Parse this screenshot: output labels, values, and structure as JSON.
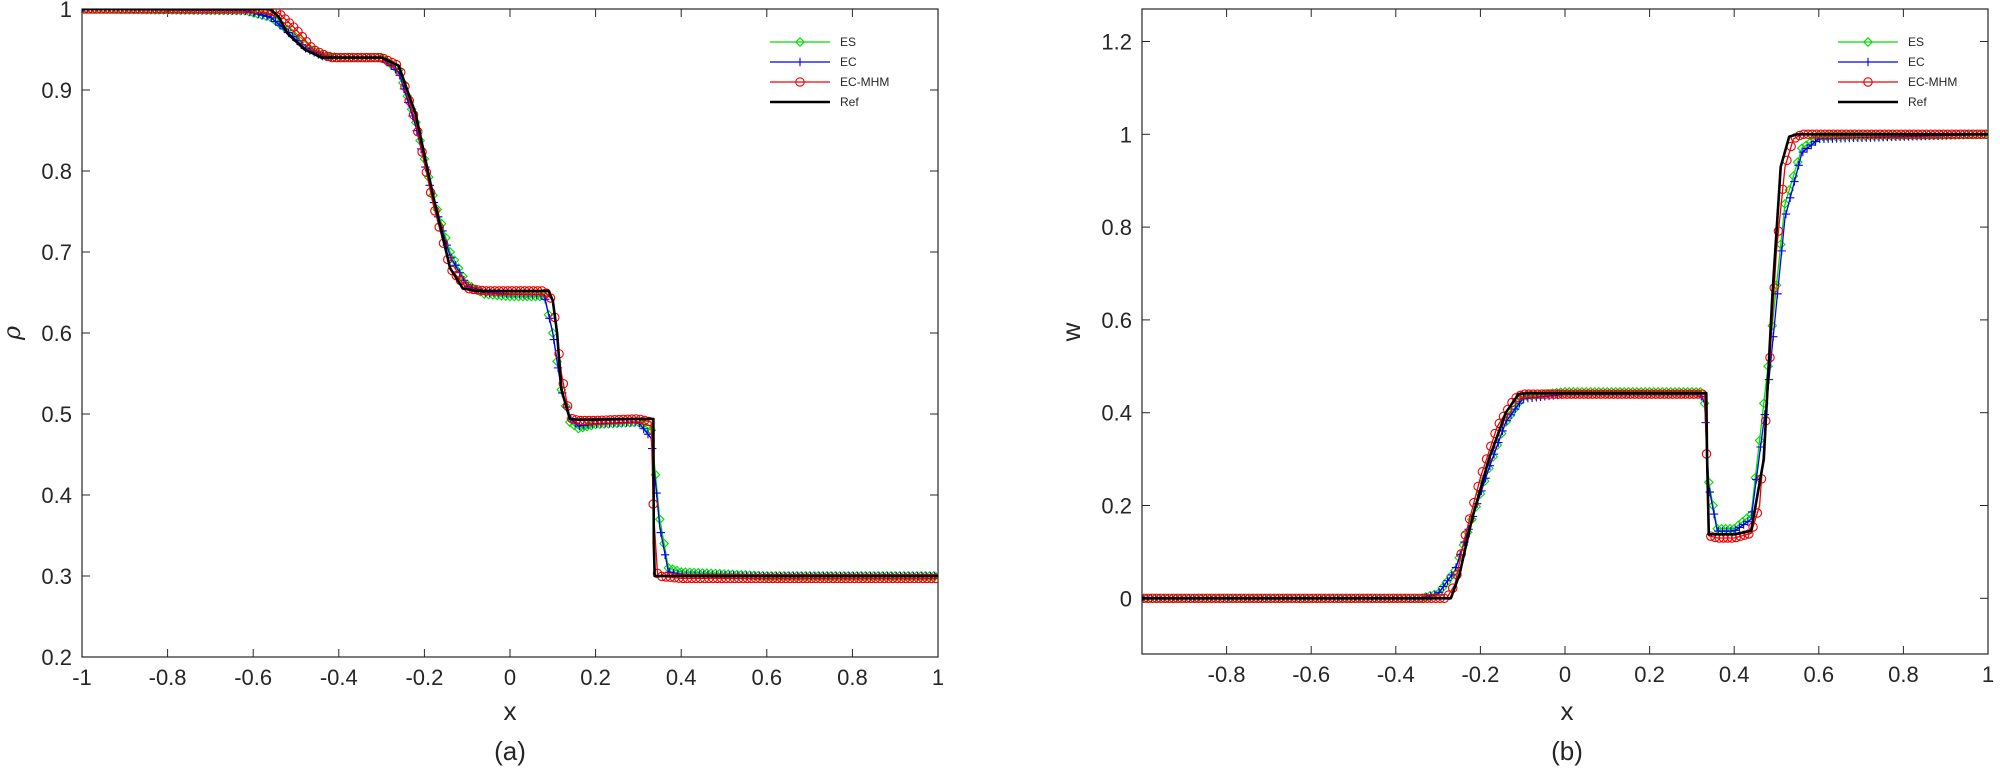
{
  "chart_data": [
    {
      "type": "line",
      "panel": "(a)",
      "xlabel": "x",
      "ylabel": "ρ",
      "xlim": [
        -1,
        1
      ],
      "ylim": [
        0.2,
        1
      ],
      "xticks": [
        -1,
        -0.8,
        -0.6,
        -0.4,
        -0.2,
        0,
        0.2,
        0.4,
        0.6,
        0.8,
        1
      ],
      "yticks": [
        0.2,
        0.3,
        0.4,
        0.5,
        0.6,
        0.7,
        0.8,
        0.9,
        1
      ],
      "xtick_labels": [
        "-1",
        "-0.8",
        "-0.6",
        "-0.4",
        "-0.2",
        "0",
        "0.2",
        "0.4",
        "0.6",
        "0.8",
        "1"
      ],
      "ytick_labels": [
        "0.2",
        "0.3",
        "0.4",
        "0.5",
        "0.6",
        "0.7",
        "0.8",
        "0.9",
        "1"
      ],
      "grid": false,
      "legend_position": "top-right",
      "series": [
        {
          "name": "ES",
          "color": "#00dd00",
          "marker": "diamond",
          "x": [
            -1,
            -0.62,
            -0.56,
            -0.52,
            -0.48,
            -0.44,
            -0.4,
            -0.3,
            -0.26,
            -0.22,
            -0.18,
            -0.14,
            -0.1,
            -0.06,
            0,
            0.08,
            0.1,
            0.12,
            0.14,
            0.16,
            0.2,
            0.3,
            0.33,
            0.35,
            0.37,
            0.4,
            0.6,
            1
          ],
          "y": [
            1,
            0.998,
            0.99,
            0.975,
            0.955,
            0.943,
            0.94,
            0.94,
            0.925,
            0.86,
            0.77,
            0.7,
            0.66,
            0.648,
            0.645,
            0.645,
            0.6,
            0.53,
            0.49,
            0.482,
            0.487,
            0.49,
            0.48,
            0.37,
            0.31,
            0.305,
            0.3,
            0.3
          ]
        },
        {
          "name": "EC",
          "color": "#0000ee",
          "marker": "plus",
          "x": [
            -1,
            -0.62,
            -0.56,
            -0.52,
            -0.48,
            -0.44,
            -0.4,
            -0.3,
            -0.26,
            -0.22,
            -0.18,
            -0.14,
            -0.1,
            -0.06,
            0,
            0.08,
            0.1,
            0.12,
            0.14,
            0.16,
            0.2,
            0.3,
            0.33,
            0.35,
            0.37,
            0.4,
            0.6,
            1
          ],
          "y": [
            1,
            0.998,
            0.99,
            0.972,
            0.952,
            0.942,
            0.94,
            0.94,
            0.922,
            0.855,
            0.765,
            0.695,
            0.658,
            0.65,
            0.648,
            0.647,
            0.6,
            0.53,
            0.495,
            0.485,
            0.488,
            0.49,
            0.47,
            0.36,
            0.305,
            0.302,
            0.3,
            0.3
          ]
        },
        {
          "name": "EC-MHM",
          "color": "#ee0000",
          "marker": "circle",
          "x": [
            -1,
            -0.58,
            -0.54,
            -0.5,
            -0.46,
            -0.42,
            -0.4,
            -0.3,
            -0.26,
            -0.22,
            -0.18,
            -0.14,
            -0.1,
            -0.06,
            0,
            0.08,
            0.1,
            0.12,
            0.14,
            0.16,
            0.2,
            0.3,
            0.33,
            0.335,
            0.345,
            0.4,
            0.6,
            1
          ],
          "y": [
            1,
            1,
            0.995,
            0.975,
            0.95,
            0.94,
            0.94,
            0.94,
            0.93,
            0.86,
            0.76,
            0.68,
            0.655,
            0.652,
            0.652,
            0.652,
            0.64,
            0.55,
            0.495,
            0.492,
            0.492,
            0.494,
            0.49,
            0.38,
            0.3,
            0.297,
            0.297,
            0.297
          ]
        },
        {
          "name": "Ref",
          "color": "#000000",
          "marker": "none",
          "x": [
            -1,
            -0.56,
            -0.54,
            -0.52,
            -0.48,
            -0.44,
            -0.4,
            -0.3,
            -0.26,
            -0.22,
            -0.18,
            -0.14,
            -0.11,
            -0.08,
            0.09,
            0.1,
            0.11,
            0.12,
            0.14,
            0.16,
            0.3,
            0.335,
            0.336,
            0.338,
            0.4,
            1
          ],
          "y": [
            1,
            1,
            0.99,
            0.97,
            0.95,
            0.94,
            0.94,
            0.94,
            0.93,
            0.87,
            0.77,
            0.68,
            0.655,
            0.652,
            0.652,
            0.64,
            0.6,
            0.53,
            0.494,
            0.493,
            0.494,
            0.494,
            0.34,
            0.3,
            0.3,
            0.3
          ]
        }
      ]
    },
    {
      "type": "line",
      "panel": "(b)",
      "xlabel": "x",
      "ylabel": "w",
      "xlim": [
        -1,
        1
      ],
      "ylim": [
        -0.12,
        1.27
      ],
      "xticks": [
        -0.8,
        -0.6,
        -0.4,
        -0.2,
        0,
        0.2,
        0.4,
        0.6,
        0.8,
        1
      ],
      "yticks": [
        0,
        0.2,
        0.4,
        0.6,
        0.8,
        1,
        1.2
      ],
      "xtick_labels": [
        "-0.8",
        "-0.6",
        "-0.4",
        "-0.2",
        "0",
        "0.2",
        "0.4",
        "0.6",
        "0.8",
        "1"
      ],
      "ytick_labels": [
        "0",
        "0.2",
        "0.4",
        "0.6",
        "0.8",
        "1",
        "1.2"
      ],
      "grid": false,
      "legend_position": "top-right",
      "series": [
        {
          "name": "ES",
          "color": "#00dd00",
          "marker": "diamond",
          "x": [
            -1,
            -0.34,
            -0.3,
            -0.26,
            -0.22,
            -0.18,
            -0.14,
            -0.1,
            0,
            0.32,
            0.33,
            0.34,
            0.36,
            0.4,
            0.44,
            0.48,
            0.52,
            0.56,
            0.6,
            1
          ],
          "y": [
            0,
            0,
            0.01,
            0.06,
            0.17,
            0.28,
            0.38,
            0.435,
            0.445,
            0.445,
            0.42,
            0.25,
            0.15,
            0.15,
            0.18,
            0.5,
            0.85,
            0.97,
            0.995,
            1
          ]
        },
        {
          "name": "EC",
          "color": "#0000ee",
          "marker": "plus",
          "x": [
            -1,
            -0.34,
            -0.3,
            -0.26,
            -0.22,
            -0.18,
            -0.14,
            -0.1,
            0,
            0.32,
            0.33,
            0.34,
            0.36,
            0.4,
            0.44,
            0.48,
            0.52,
            0.56,
            0.6,
            1
          ],
          "y": [
            0,
            0,
            0.01,
            0.06,
            0.17,
            0.28,
            0.38,
            0.43,
            0.44,
            0.44,
            0.42,
            0.24,
            0.145,
            0.145,
            0.17,
            0.45,
            0.82,
            0.96,
            0.99,
            1
          ]
        },
        {
          "name": "EC-MHM",
          "color": "#ee0000",
          "marker": "circle",
          "x": [
            -1,
            -0.28,
            -0.26,
            -0.24,
            -0.2,
            -0.16,
            -0.12,
            -0.1,
            0,
            0.33,
            0.335,
            0.34,
            0.36,
            0.4,
            0.44,
            0.46,
            0.48,
            0.5,
            0.52,
            0.54,
            0.56,
            1
          ],
          "y": [
            0,
            0,
            0.03,
            0.12,
            0.26,
            0.37,
            0.43,
            0.44,
            0.44,
            0.44,
            0.3,
            0.135,
            0.13,
            0.13,
            0.14,
            0.2,
            0.45,
            0.75,
            0.93,
            0.99,
            1,
            1
          ]
        },
        {
          "name": "Ref",
          "color": "#000000",
          "marker": "none",
          "x": [
            -1,
            -0.27,
            -0.25,
            -0.22,
            -0.18,
            -0.14,
            -0.11,
            -0.09,
            0,
            0.334,
            0.336,
            0.34,
            0.4,
            0.44,
            0.47,
            0.49,
            0.51,
            0.53,
            0.55,
            1
          ],
          "y": [
            0,
            0,
            0.05,
            0.17,
            0.3,
            0.4,
            0.44,
            0.442,
            0.442,
            0.442,
            0.3,
            0.138,
            0.138,
            0.145,
            0.3,
            0.65,
            0.93,
            0.995,
            1,
            1
          ]
        }
      ]
    }
  ]
}
